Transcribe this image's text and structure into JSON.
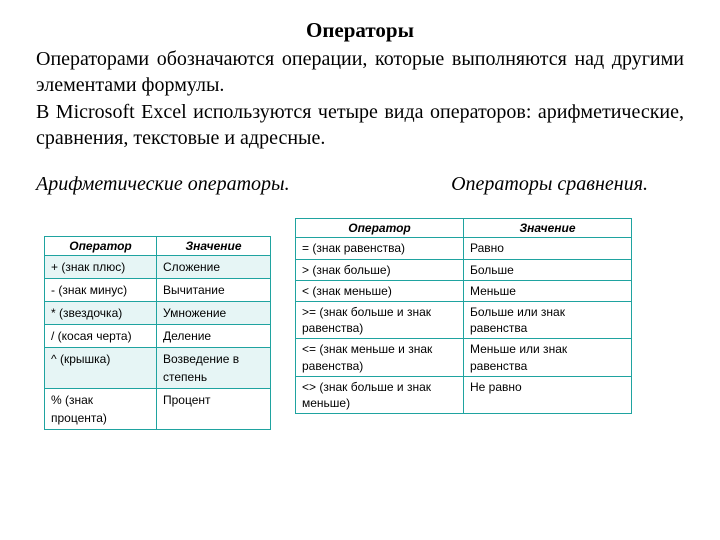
{
  "title": "Операторы",
  "para1": "Операторами обозначаются операции, которые выполняются над другими элементами формулы.",
  "para2": "В Microsoft Excel используются четыре вида операторов: арифметические, сравнения, текстовые и адресные.",
  "sub_left": "Арифметические операторы.",
  "sub_right": "Операторы сравнения.",
  "left_table": {
    "h1": "Оператор",
    "h2": "Значение",
    "rows": [
      {
        "c1": "+ (знак плюс)",
        "c2": "Сложение"
      },
      {
        "c1": "- (знак минус)",
        "c2": "Вычитание"
      },
      {
        "c1": "* (звездочка)",
        "c2": "Умножение"
      },
      {
        "c1": "/ (косая черта)",
        "c2": "Деление"
      },
      {
        "c1": "^ (крышка)",
        "c2": "Возведение в степень"
      },
      {
        "c1": "% (знак процента)",
        "c2": "Процент"
      }
    ]
  },
  "right_table": {
    "h1": "Оператор",
    "h2": "Значение",
    "rows": [
      {
        "c1": "= (знак равенства)",
        "c2": "Равно"
      },
      {
        "c1": "> (знак больше)",
        "c2": "Больше"
      },
      {
        "c1": "< (знак меньше)",
        "c2": "Меньше"
      },
      {
        "c1": ">= (знак больше и знак равенства)",
        "c2": "Больше или знак равенства"
      },
      {
        "c1": "<= (знак меньше и знак равенства)",
        "c2": "Меньше или знак равенства"
      },
      {
        "c1": "<> (знак больше и знак меньше)",
        "c2": "Не равно"
      }
    ]
  }
}
